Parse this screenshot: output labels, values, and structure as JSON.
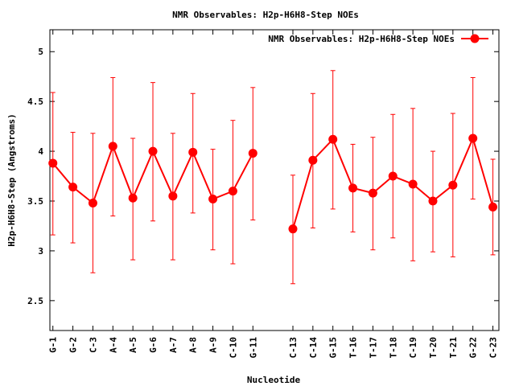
{
  "chart_data": {
    "type": "line",
    "title": "NMR Observables: H2p-H6H8-Step NOEs",
    "xlabel": "Nucleotide",
    "ylabel": "H2p-H6H8-Step (Angstroms)",
    "ylim": [
      2.2,
      5.22
    ],
    "yticks": [
      "2.5",
      "3",
      "3.5",
      "4",
      "4.5",
      "5"
    ],
    "legend_position": "top-right",
    "grid": false,
    "color": "#ff0000",
    "categories": [
      "G-1",
      "G-2",
      "C-3",
      "A-4",
      "A-5",
      "G-6",
      "A-7",
      "A-8",
      "A-9",
      "C-10",
      "G-11",
      "C-13",
      "C-14",
      "G-15",
      "T-16",
      "T-17",
      "T-18",
      "C-19",
      "T-20",
      "T-21",
      "G-22",
      "C-23"
    ],
    "x": [
      1,
      2,
      3,
      4,
      5,
      6,
      7,
      8,
      9,
      10,
      11,
      13,
      14,
      15,
      16,
      17,
      18,
      19,
      20,
      21,
      22,
      23
    ],
    "series": [
      {
        "name": "NMR Observables: H2p-H6H8-Step NOEs",
        "values": [
          3.88,
          3.64,
          3.48,
          4.05,
          3.53,
          4.0,
          3.55,
          3.99,
          3.52,
          3.6,
          3.98,
          3.22,
          3.91,
          4.12,
          3.63,
          3.58,
          3.75,
          3.67,
          3.5,
          3.66,
          4.13,
          3.44
        ],
        "err_low": [
          3.16,
          3.08,
          2.78,
          3.35,
          2.91,
          3.3,
          2.91,
          3.38,
          3.01,
          2.87,
          3.31,
          2.67,
          3.23,
          3.42,
          3.19,
          3.01,
          3.13,
          2.9,
          2.99,
          2.94,
          3.52,
          2.96
        ],
        "err_high": [
          4.59,
          4.19,
          4.18,
          4.74,
          4.13,
          4.69,
          4.18,
          4.58,
          4.02,
          4.31,
          4.64,
          3.76,
          4.58,
          4.81,
          4.07,
          4.14,
          4.37,
          4.43,
          4.0,
          4.38,
          4.74,
          3.92
        ]
      }
    ]
  }
}
